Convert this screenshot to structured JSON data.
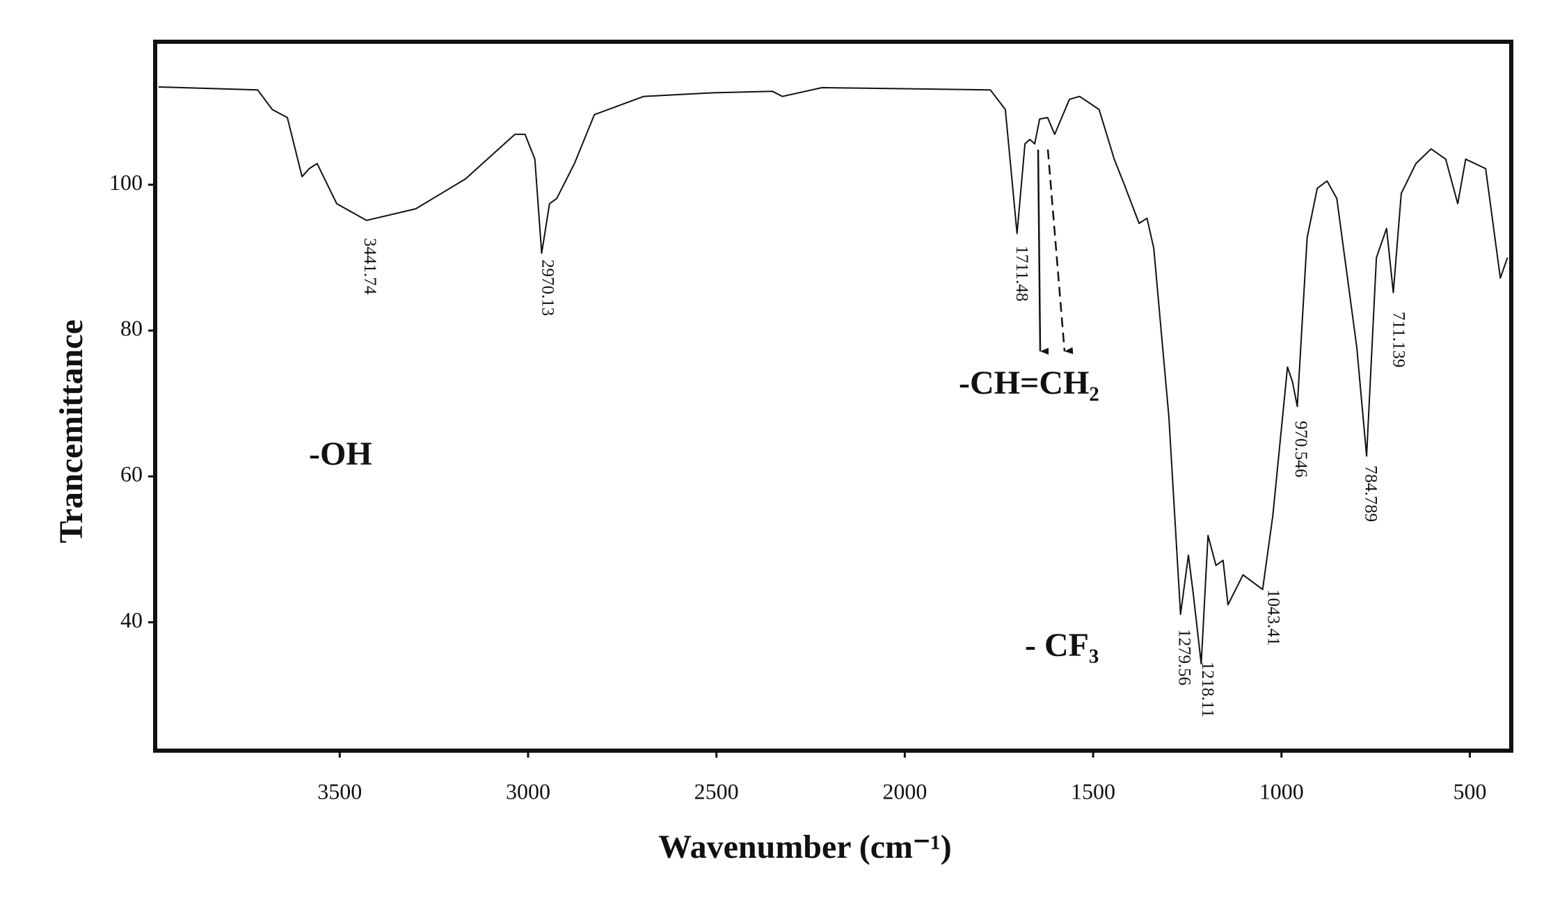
{
  "chart_data": {
    "type": "line",
    "x_label": "Wavenumber (cm⁻¹)",
    "y_label": "Trancemittance",
    "xlim": [
      3990,
      390
    ],
    "ylim": [
      22.4,
      119.6
    ],
    "xticks": [
      3500,
      3000,
      2500,
      2000,
      1500,
      1000,
      500
    ],
    "yticks": [
      40,
      60,
      80,
      100
    ],
    "series": [
      {
        "color": "#111111",
        "x": [
          3981,
          3718,
          3679,
          3639,
          3600,
          3581,
          3560,
          3508,
          3429,
          3298,
          3166,
          3035,
          3008,
          2982,
          2964,
          2943,
          2924,
          2877,
          2824,
          2693,
          2509,
          2351,
          2325,
          2220,
          1773,
          1733,
          1702,
          1681,
          1668,
          1655,
          1642,
          1621,
          1602,
          1563,
          1536,
          1484,
          1444,
          1418,
          1378,
          1357,
          1339,
          1299,
          1268,
          1247,
          1234,
          1213,
          1195,
          1174,
          1155,
          1142,
          1102,
          1050,
          1023,
          984,
          971,
          958,
          932,
          905,
          879,
          853,
          800,
          774,
          748,
          721,
          703,
          682,
          643,
          603,
          564,
          532,
          511,
          458,
          419,
          400
        ],
        "values": [
          113.4,
          113.0,
          110.3,
          109.2,
          101.1,
          102.2,
          102.9,
          97.4,
          95.1,
          96.7,
          100.8,
          106.9,
          106.9,
          103.5,
          90.6,
          97.4,
          98.1,
          102.9,
          109.6,
          112.1,
          112.6,
          112.8,
          112.1,
          113.3,
          113.0,
          110.3,
          93.3,
          105.6,
          106.2,
          105.6,
          109.0,
          109.2,
          106.9,
          111.7,
          112.1,
          110.3,
          103.5,
          100.1,
          94.7,
          95.4,
          91.3,
          68.2,
          41.1,
          49.2,
          43.8,
          34.3,
          51.9,
          47.8,
          48.5,
          42.4,
          46.5,
          44.5,
          54.6,
          75.0,
          73.0,
          69.6,
          92.7,
          99.5,
          100.5,
          98.1,
          77.7,
          62.8,
          90.0,
          94.0,
          85.2,
          98.8,
          102.9,
          104.9,
          103.5,
          97.4,
          103.5,
          102.2,
          87.2,
          90.0
        ]
      }
    ],
    "peak_labels": [
      "3441.74",
      "2970.13",
      "1711.48",
      "1279.56",
      "1218.11",
      "1043.41",
      "970.546",
      "784.789",
      "711.139"
    ],
    "group_labels": [
      "-OH",
      "-CH=CH₂",
      "- CF₃"
    ]
  }
}
